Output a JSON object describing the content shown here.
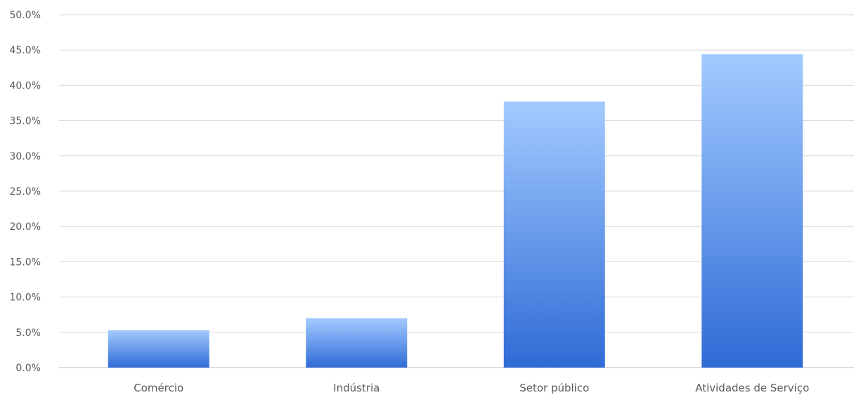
{
  "chart_data": {
    "type": "bar",
    "title": "",
    "xlabel": "",
    "ylabel": "",
    "categories": [
      "Comércio",
      "Indústria",
      "Setor público",
      "Atividades de Serviço"
    ],
    "values": [
      5.3,
      7.0,
      37.7,
      44.4
    ],
    "ylim": [
      0,
      50
    ],
    "yticks": [
      0,
      5,
      10,
      15,
      20,
      25,
      30,
      35,
      40,
      45,
      50
    ],
    "ytick_labels": [
      "0.0%",
      "5.0%",
      "10.0%",
      "15.0%",
      "20.0%",
      "25.0%",
      "30.0%",
      "35.0%",
      "40.0%",
      "45.0%",
      "50.0%"
    ],
    "y_unit": "%",
    "grid": true,
    "legend": "none",
    "colors": {
      "bar_top": "#a3cbff",
      "bar_bottom": "#2f6bd6",
      "grid": "#d9d9d9",
      "text": "#595959"
    }
  }
}
